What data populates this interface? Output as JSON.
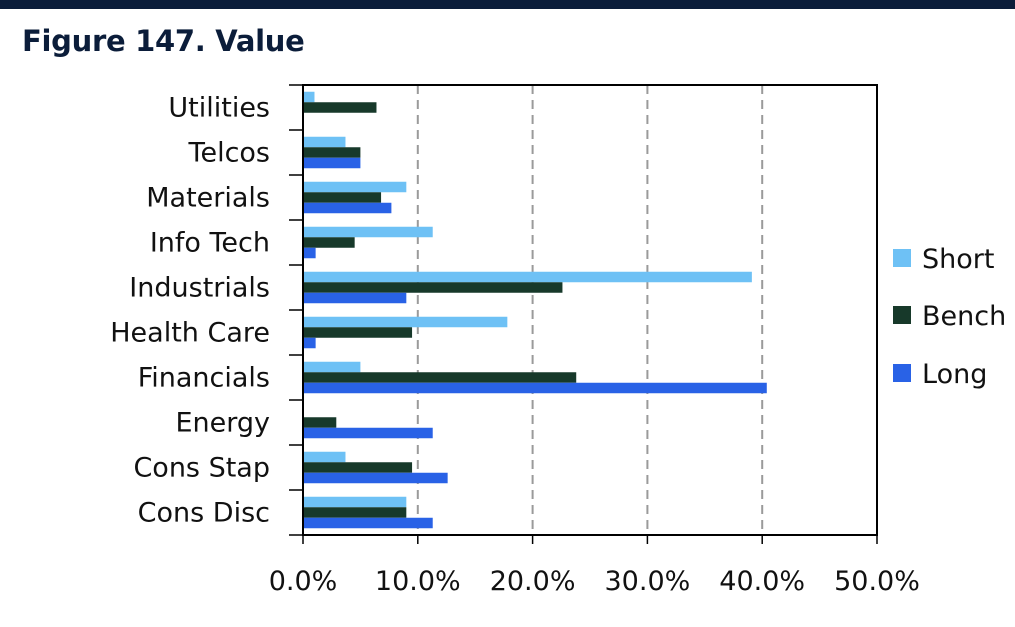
{
  "figure": {
    "title": "Figure 147. Value"
  },
  "colors": {
    "topbar": "#0b1d3a",
    "title": "#0b1d3a",
    "short": "#6ec1f5",
    "bench": "#17392a",
    "long": "#2962e6",
    "grid": "#9a9a9a",
    "axis": "#000000"
  },
  "chart_data": {
    "type": "bar",
    "orientation": "horizontal",
    "categories": [
      "Utilities",
      "Telcos",
      "Materials",
      "Info Tech",
      "Industrials",
      "Health Care",
      "Financials",
      "Energy",
      "Cons Stap",
      "Cons Disc"
    ],
    "series": [
      {
        "name": "Short",
        "color": "#6ec1f5",
        "values": [
          1.0,
          3.7,
          9.0,
          11.3,
          39.1,
          17.8,
          5.0,
          0.0,
          3.7,
          9.0
        ]
      },
      {
        "name": "Bench",
        "color": "#17392a",
        "values": [
          6.4,
          5.0,
          6.8,
          4.5,
          22.6,
          9.5,
          23.8,
          2.9,
          9.5,
          9.0
        ]
      },
      {
        "name": "Long",
        "color": "#2962e6",
        "values": [
          0.0,
          5.0,
          7.7,
          1.1,
          9.0,
          1.1,
          40.4,
          11.3,
          12.6,
          11.3
        ]
      }
    ],
    "xlim": [
      0,
      50
    ],
    "x_ticks": [
      0,
      10,
      20,
      30,
      40,
      50
    ],
    "x_tick_labels": [
      "0.0%",
      "10.0%",
      "20.0%",
      "30.0%",
      "40.0%",
      "50.0%"
    ],
    "unit": "%",
    "grid": "vertical dashed",
    "legend_position": "right",
    "xlabel": "",
    "ylabel": ""
  }
}
